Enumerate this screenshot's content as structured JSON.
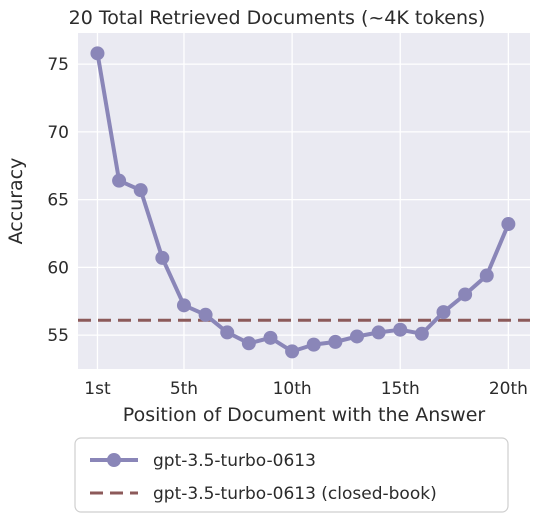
{
  "chart_data": {
    "type": "line",
    "title": "20 Total Retrieved Documents (~4K tokens)",
    "xlabel": "Position of Document with the Answer",
    "ylabel": "Accuracy",
    "x": [
      1,
      2,
      3,
      4,
      5,
      6,
      7,
      8,
      9,
      10,
      11,
      12,
      13,
      14,
      15,
      16,
      17,
      18,
      19,
      20
    ],
    "x_ticks": [
      1,
      5,
      10,
      15,
      20
    ],
    "x_tick_labels": [
      "1st",
      "5th",
      "10th",
      "15th",
      "20th"
    ],
    "y_ticks": [
      55,
      60,
      65,
      70,
      75
    ],
    "y_tick_labels": [
      "55",
      "60",
      "65",
      "70",
      "75"
    ],
    "xlim": [
      0.1,
      21.0
    ],
    "ylim": [
      52.5,
      77.3
    ],
    "grid": true,
    "legend_position": "bottom",
    "series": [
      {
        "name": "gpt-3.5-turbo-0613",
        "style": "line-with-markers",
        "color": "#8a86b8",
        "values": [
          75.8,
          66.4,
          65.7,
          60.7,
          57.2,
          56.5,
          55.2,
          54.4,
          54.8,
          53.8,
          54.3,
          54.5,
          54.9,
          55.2,
          55.4,
          55.1,
          56.7,
          58.0,
          59.4,
          63.2
        ]
      },
      {
        "name": "gpt-3.5-turbo-0613 (closed-book)",
        "style": "dashed-reference",
        "color": "#8c5a5a",
        "value": 56.1
      }
    ]
  }
}
